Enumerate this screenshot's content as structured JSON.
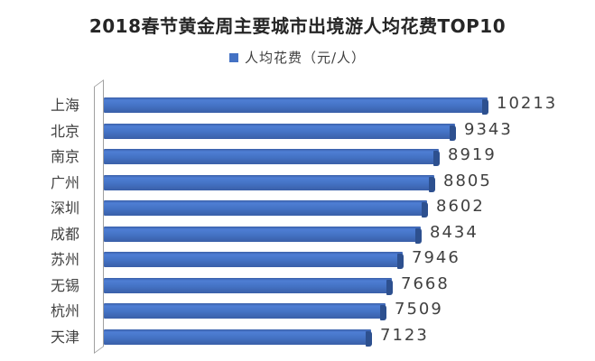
{
  "title": "2018春节黄金周主要城市出境游人均花费TOP10",
  "legend": {
    "label": "人均花费（元/人）"
  },
  "colors": {
    "bar": "#4472C4",
    "bar_light": "#4E7ED4",
    "bar_dark": "#3A5FA8",
    "bar_cap": "#2D508F",
    "wall_border": "#A0A0A0",
    "title_text": "#262626",
    "label_text": "#404040"
  },
  "chart_data": {
    "type": "bar",
    "orientation": "horizontal",
    "style": "3d",
    "title": "2018春节黄金周主要城市出境游人均花费TOP10",
    "series_name": "人均花费（元/人）",
    "categories": [
      "上海",
      "北京",
      "南京",
      "广州",
      "深圳",
      "成都",
      "苏州",
      "无锡",
      "杭州",
      "天津"
    ],
    "values": [
      10213,
      9343,
      8919,
      8805,
      8602,
      8434,
      7946,
      7668,
      7509,
      7123
    ],
    "xlabel": "",
    "ylabel": "",
    "xlim": [
      0,
      10500
    ],
    "grid": false,
    "legend_position": "top",
    "data_labels": true
  }
}
